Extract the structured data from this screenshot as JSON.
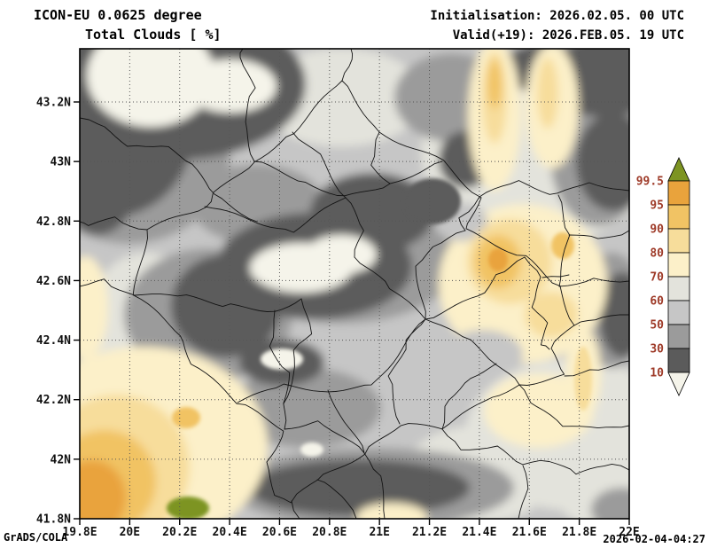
{
  "header": {
    "model_line": "ICON-EU 0.0625 degree",
    "variable_line": "Total Clouds  [ %]",
    "init_line": "Initialisation: 2026.02.05. 00 UTC",
    "valid_line": "Valid(+19): 2026.FEB.05. 19 UTC"
  },
  "footer": {
    "credit": "GrADS/COLA",
    "timestamp": "2026-02-04-04:27"
  },
  "axes": {
    "lat_ticks": [
      "43.2N",
      "43N",
      "42.8N",
      "42.6N",
      "42.4N",
      "42.2N",
      "42N",
      "41.8N"
    ],
    "lon_ticks": [
      "19.8E",
      "20E",
      "20.2E",
      "20.4E",
      "20.6E",
      "20.8E",
      "21E",
      "21.2E",
      "21.4E",
      "21.6E",
      "21.8E",
      "22E"
    ]
  },
  "palette": {
    "green": "#7d9422",
    "orange": "#e9a33c",
    "light_orange": "#f1c364",
    "yellow": "#f7dd9b",
    "pale_yellow": "#fcf0c9",
    "gray_60_70": "#e3e3dc",
    "gray_50_60": "#c6c6c6",
    "gray_30_50": "#9b9b9b",
    "gray_10_30": "#5b5b5b",
    "clear_white": "#f5f4ea"
  },
  "legend": {
    "labels": [
      "99.5",
      "95",
      "90",
      "80",
      "70",
      "60",
      "50",
      "30",
      "10"
    ],
    "segments_top_to_bottom": [
      "orange",
      "light_orange",
      "yellow",
      "pale_yellow",
      "gray_60_70",
      "gray_50_60",
      "gray_30_50",
      "gray_10_30"
    ],
    "arrow_top": "green",
    "arrow_bottom": "clear_white",
    "label_color": "#9e3a28"
  },
  "chart_data": {
    "type": "heatmap",
    "title": "Total Clouds  [ %]",
    "model": "ICON-EU 0.0625 degree",
    "initialisation": "2026.02.05. 00 UTC",
    "valid": "2026.FEB.05. 19 UTC",
    "lead_hours": 19,
    "unit": "%",
    "lon_range": [
      19.8,
      22.0
    ],
    "lat_range": [
      41.8,
      43.2
    ],
    "tick_interval_deg": 0.2,
    "grid": "dotted",
    "legend_position": "right",
    "contour_levels": [
      10,
      30,
      50,
      60,
      70,
      80,
      90,
      95,
      99.5
    ],
    "level_colors_low_to_high": [
      "#f5f4ea",
      "#5b5b5b",
      "#9b9b9b",
      "#c6c6c6",
      "#e3e3dc",
      "#fcf0c9",
      "#f7dd9b",
      "#f1c364",
      "#e9a33c",
      "#7d9422"
    ]
  }
}
